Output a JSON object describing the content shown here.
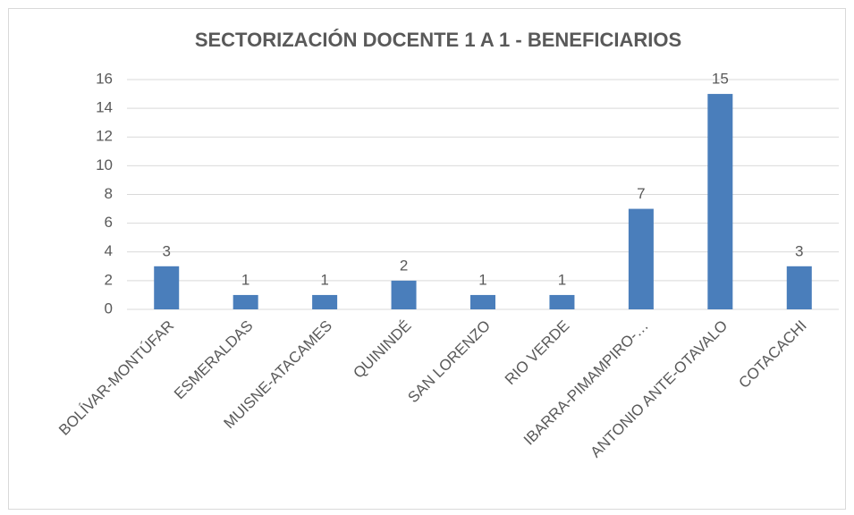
{
  "chart_data": {
    "type": "bar",
    "title": "SECTORIZACIÓN DOCENTE 1 A 1 - BENEFICIARIOS",
    "categories": [
      "BOLÍVAR-MONTÚFAR",
      "ESMERALDAS",
      "MUISNE-ATACAMES",
      "QUININDÉ",
      "SAN LORENZO",
      "RIO VERDE",
      "IBARRA-PIMAMPIRO-…",
      "ANTONIO ANTE-OTAVALO",
      "COTACACHI"
    ],
    "values": [
      3,
      1,
      1,
      2,
      1,
      1,
      7,
      15,
      3
    ],
    "color": "#4a7ebb",
    "ylim": [
      0,
      16
    ],
    "yticks": [
      0,
      2,
      4,
      6,
      8,
      10,
      12,
      14,
      16
    ],
    "grid": true
  }
}
